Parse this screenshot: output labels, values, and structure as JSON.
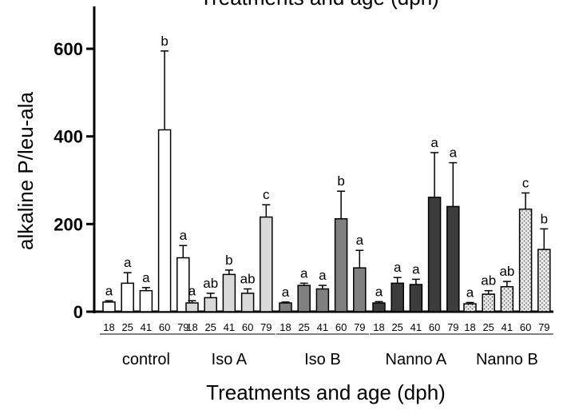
{
  "chart_data": {
    "type": "bar",
    "title": "Treatments and age (dph)",
    "ylabel": "alkaline P/leu-ala",
    "xlabel": "Treatments and age (dph)",
    "ylim": [
      0,
      700
    ],
    "yticks": [
      0,
      200,
      400,
      600
    ],
    "error_bars": true,
    "groups": [
      {
        "name": "control",
        "fill": "#ffffff",
        "pattern": "none",
        "ages": [
          "18",
          "25",
          "41",
          "60",
          "79"
        ],
        "values": [
          22,
          65,
          48,
          415,
          123
        ],
        "errors": [
          3,
          24,
          7,
          180,
          28
        ],
        "letters": [
          "a",
          "a",
          "a",
          "b",
          "a"
        ]
      },
      {
        "name": "Iso A",
        "fill": "#d9d9d9",
        "pattern": "none",
        "ages": [
          "18",
          "25",
          "41",
          "60",
          "79"
        ],
        "values": [
          20,
          32,
          85,
          42,
          216
        ],
        "errors": [
          5,
          10,
          10,
          10,
          28
        ],
        "letters": [
          "a",
          "ab",
          "b",
          "ab",
          "c"
        ]
      },
      {
        "name": "Iso B",
        "fill": "#808080",
        "pattern": "none",
        "ages": [
          "18",
          "25",
          "41",
          "60",
          "79"
        ],
        "values": [
          20,
          60,
          52,
          212,
          100
        ],
        "errors": [
          2,
          5,
          8,
          63,
          40
        ],
        "letters": [
          "a",
          "a",
          "a",
          "b",
          "a"
        ]
      },
      {
        "name": "Nanno A",
        "fill": "#3c3c3c",
        "pattern": "none",
        "ages": [
          "18",
          "25",
          "41",
          "60",
          "79"
        ],
        "values": [
          20,
          65,
          62,
          261,
          240
        ],
        "errors": [
          3,
          13,
          12,
          102,
          100
        ],
        "letters": [
          "a",
          "a",
          "a",
          "a",
          "a"
        ]
      },
      {
        "name": "Nanno B",
        "fill": "#d9d9d9",
        "pattern": "dots",
        "ages": [
          "18",
          "25",
          "41",
          "60",
          "79"
        ],
        "values": [
          18,
          40,
          57,
          234,
          142
        ],
        "errors": [
          3,
          8,
          12,
          37,
          47
        ],
        "letters": [
          "a",
          "ab",
          "ab",
          "c",
          "b"
        ]
      }
    ]
  }
}
